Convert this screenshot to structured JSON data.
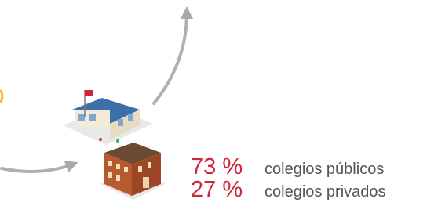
{
  "stats": [
    {
      "percent": "73 %",
      "label": "colegios públicos"
    },
    {
      "percent": "27 %",
      "label": "colegios privados"
    }
  ]
}
